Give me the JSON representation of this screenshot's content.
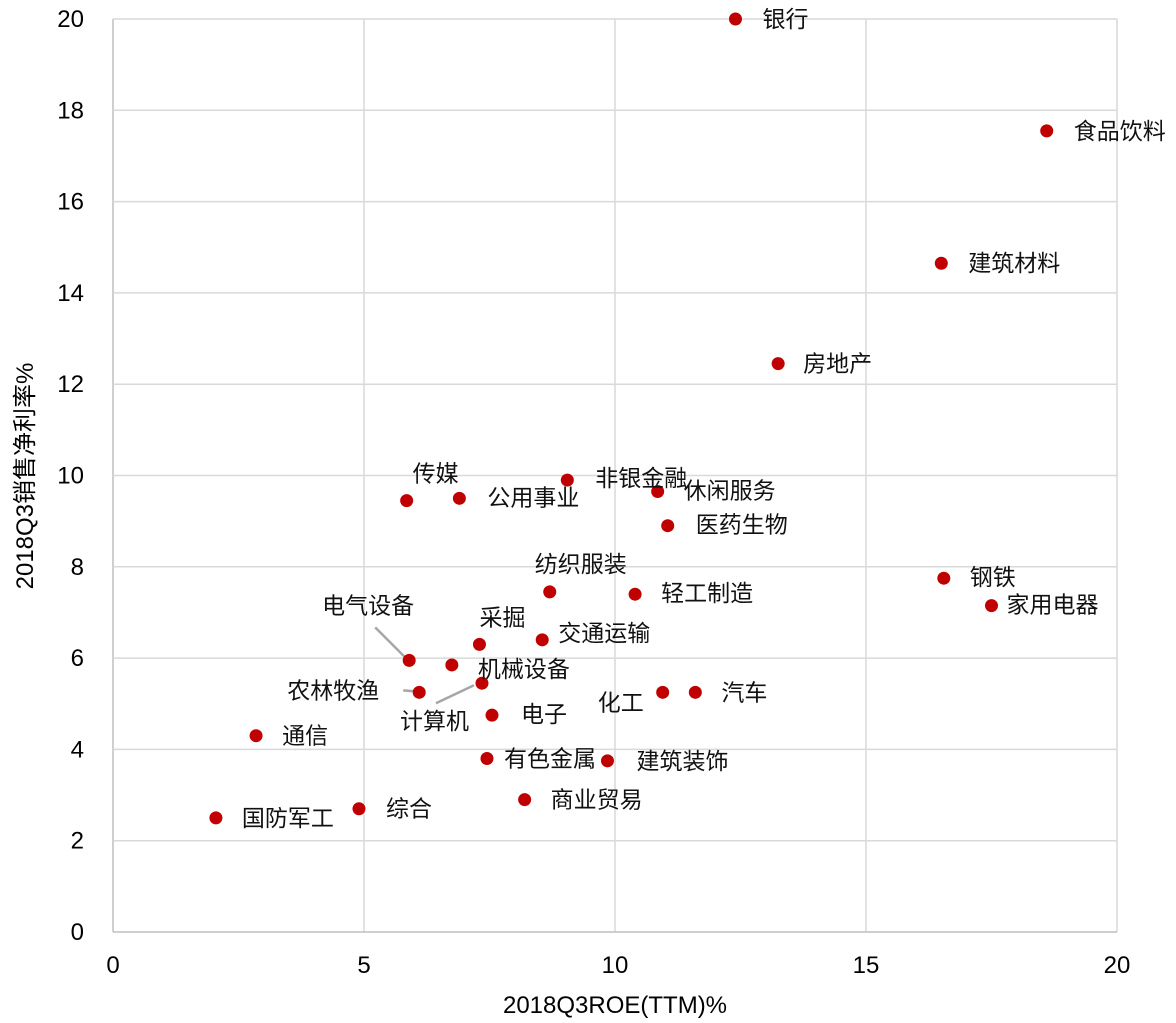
{
  "chart_data": {
    "type": "scatter",
    "xlabel": "2018Q3ROE(TTM)%",
    "ylabel": "2018Q3销售净利率%",
    "xlim": [
      0,
      20
    ],
    "ylim": [
      0,
      20
    ],
    "x_ticks": [
      0,
      5,
      10,
      15,
      20
    ],
    "y_ticks": [
      0,
      2,
      4,
      6,
      8,
      10,
      12,
      14,
      16,
      18,
      20
    ],
    "grid": true,
    "marker_color": "#c00000",
    "points": [
      {
        "label": "银行",
        "x": 12.4,
        "y": 20.0
      },
      {
        "label": "食品饮料",
        "x": 18.6,
        "y": 17.55
      },
      {
        "label": "建筑材料",
        "x": 16.5,
        "y": 14.65
      },
      {
        "label": "房地产",
        "x": 13.25,
        "y": 12.45
      },
      {
        "label": "传媒",
        "x": 5.85,
        "y": 9.45
      },
      {
        "label": "公用事业",
        "x": 6.9,
        "y": 9.5
      },
      {
        "label": "非银金融",
        "x": 9.05,
        "y": 9.9
      },
      {
        "label": "休闲服务",
        "x": 10.85,
        "y": 9.65
      },
      {
        "label": "医药生物",
        "x": 11.05,
        "y": 8.9
      },
      {
        "label": "纺织服装",
        "x": 8.7,
        "y": 7.45
      },
      {
        "label": "轻工制造",
        "x": 10.4,
        "y": 7.4
      },
      {
        "label": "钢铁",
        "x": 16.55,
        "y": 7.75
      },
      {
        "label": "家用电器",
        "x": 17.5,
        "y": 7.15
      },
      {
        "label": "采掘",
        "x": 7.3,
        "y": 6.3
      },
      {
        "label": "交通运输",
        "x": 8.55,
        "y": 6.4
      },
      {
        "label": "电气设备",
        "x": 5.9,
        "y": 5.95
      },
      {
        "label": "机械设备",
        "x": 6.75,
        "y": 5.85
      },
      {
        "label": "农林牧渔",
        "x": 6.1,
        "y": 5.25
      },
      {
        "label": "计算机",
        "x": 7.35,
        "y": 5.45
      },
      {
        "label": "化工",
        "x": 10.95,
        "y": 5.25
      },
      {
        "label": "汽车",
        "x": 11.6,
        "y": 5.25
      },
      {
        "label": "电子",
        "x": 7.55,
        "y": 4.75
      },
      {
        "label": "通信",
        "x": 2.85,
        "y": 4.3
      },
      {
        "label": "有色金属",
        "x": 7.45,
        "y": 3.8
      },
      {
        "label": "建筑装饰",
        "x": 9.85,
        "y": 3.75
      },
      {
        "label": "商业贸易",
        "x": 8.2,
        "y": 2.9
      },
      {
        "label": "综合",
        "x": 4.9,
        "y": 2.7
      },
      {
        "label": "国防军工",
        "x": 2.05,
        "y": 2.5
      }
    ]
  }
}
